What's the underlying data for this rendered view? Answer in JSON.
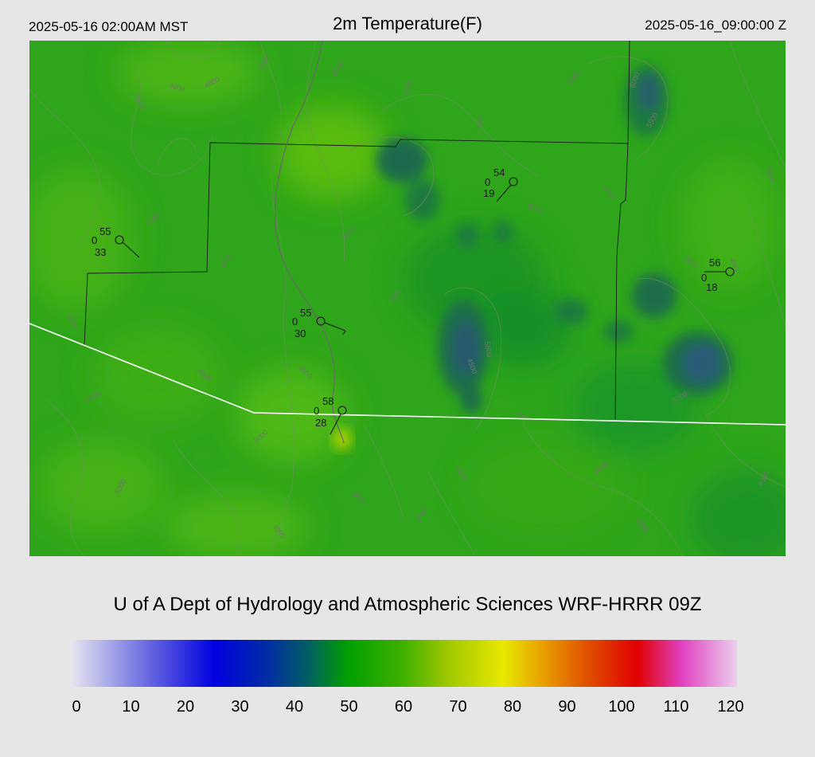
{
  "header": {
    "local_time": "2025-05-16 02:00AM MST",
    "title": "2m Temperature(F)",
    "utc_time": "2025-05-16_09:00:00 Z"
  },
  "credit": "U of A Dept of Hydrology and Atmospheric Sciences WRF-HRRR 09Z",
  "colorbar": {
    "min": 0,
    "max": 120,
    "tick_labels": [
      "0",
      "10",
      "20",
      "30",
      "40",
      "50",
      "60",
      "70",
      "80",
      "90",
      "100",
      "110",
      "120"
    ],
    "stops": [
      {
        "value": 0,
        "color": "#e8e8f0"
      },
      {
        "value": 15,
        "color": "#6060e0"
      },
      {
        "value": 26,
        "color": "#0000e0"
      },
      {
        "value": 36,
        "color": "#0030a0"
      },
      {
        "value": 43,
        "color": "#006060"
      },
      {
        "value": 50,
        "color": "#00a000"
      },
      {
        "value": 60,
        "color": "#40b000"
      },
      {
        "value": 68,
        "color": "#a0c800"
      },
      {
        "value": 78,
        "color": "#e8e800"
      },
      {
        "value": 85,
        "color": "#e8a000"
      },
      {
        "value": 93,
        "color": "#e05000"
      },
      {
        "value": 102,
        "color": "#e00000"
      },
      {
        "value": 110,
        "color": "#e040c0"
      },
      {
        "value": 120,
        "color": "#ecd0ec"
      }
    ]
  },
  "contour_labels": [
    "4000",
    "4000",
    "3500",
    "3500",
    "3500",
    "4000",
    "5500",
    "6000",
    "5500",
    "5500",
    "5000",
    "4000",
    "5000",
    "4500",
    "5500",
    "5000",
    "4500",
    "5000",
    "4000",
    "4500",
    "4500",
    "5500",
    "5000",
    "4500",
    "4500",
    "4000",
    "5000",
    "4000",
    "5000",
    "4500",
    "4500",
    "4000",
    "4000",
    "4000",
    "4000",
    "4000"
  ],
  "stations": [
    {
      "temp": "55",
      "sky": "0",
      "dewpoint": "33"
    },
    {
      "temp": "54",
      "sky": "0",
      "dewpoint": "19"
    },
    {
      "temp": "56",
      "sky": "0",
      "dewpoint": "18"
    },
    {
      "temp": "55",
      "sky": "0",
      "dewpoint": "30"
    },
    {
      "temp": "58",
      "sky": "0",
      "dewpoint": "28"
    }
  ]
}
